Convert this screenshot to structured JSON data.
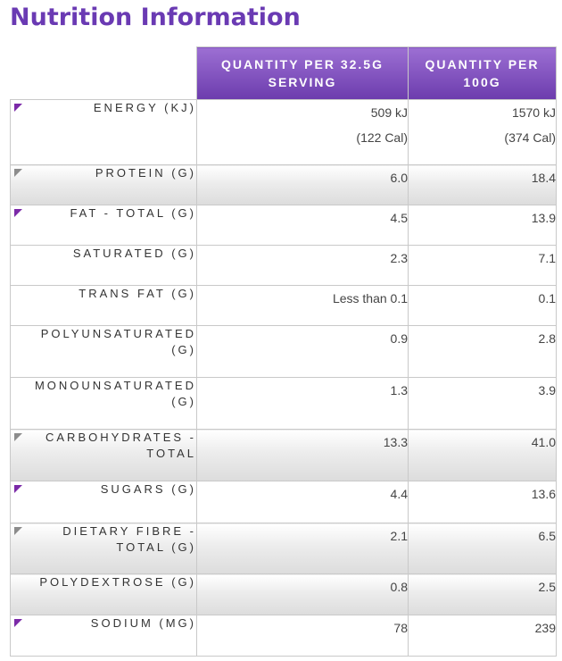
{
  "title": "Nutrition Information",
  "columns": {
    "per_serving": "QUANTITY PER 32.5G SERVING",
    "per_100g": "QUANTITY PER 100G"
  },
  "rows": [
    {
      "label": "ENERGY (KJ)",
      "serving": "509 kJ",
      "serving_sub": "(122 Cal)",
      "per100": "1570 kJ",
      "per100_sub": "(374 Cal)"
    },
    {
      "label": "PROTEIN (G)",
      "serving": "6.0",
      "per100": "18.4"
    },
    {
      "label": "FAT - TOTAL (G)",
      "serving": "4.5",
      "per100": "13.9"
    },
    {
      "label": "SATURATED (G)",
      "serving": "2.3",
      "per100": "7.1"
    },
    {
      "label": "TRANS FAT (G)",
      "serving": "Less than 0.1",
      "per100": "0.1"
    },
    {
      "label": "POLYUNSATURATED (G)",
      "serving": "0.9",
      "per100": "2.8"
    },
    {
      "label": "MONOUNSATURATED (G)",
      "serving": "1.3",
      "per100": "3.9"
    },
    {
      "label": "CARBOHYDRATES - TOTAL",
      "serving": "13.3",
      "per100": "41.0"
    },
    {
      "label": "SUGARS (G)",
      "serving": "4.4",
      "per100": "13.6"
    },
    {
      "label": "DIETARY FIBRE - TOTAL (G)",
      "serving": "2.1",
      "per100": "6.5"
    },
    {
      "label": "POLYDEXTROSE (G)",
      "serving": "0.8",
      "per100": "2.5"
    },
    {
      "label": "SODIUM (MG)",
      "serving": "78",
      "per100": "239"
    }
  ],
  "colors": {
    "title": "#6a3ab3",
    "header_top": "#9c6fd3",
    "header_bottom": "#6c3cad",
    "marker_purple": "#7b2aa8",
    "marker_grey": "#8c8c8c"
  }
}
